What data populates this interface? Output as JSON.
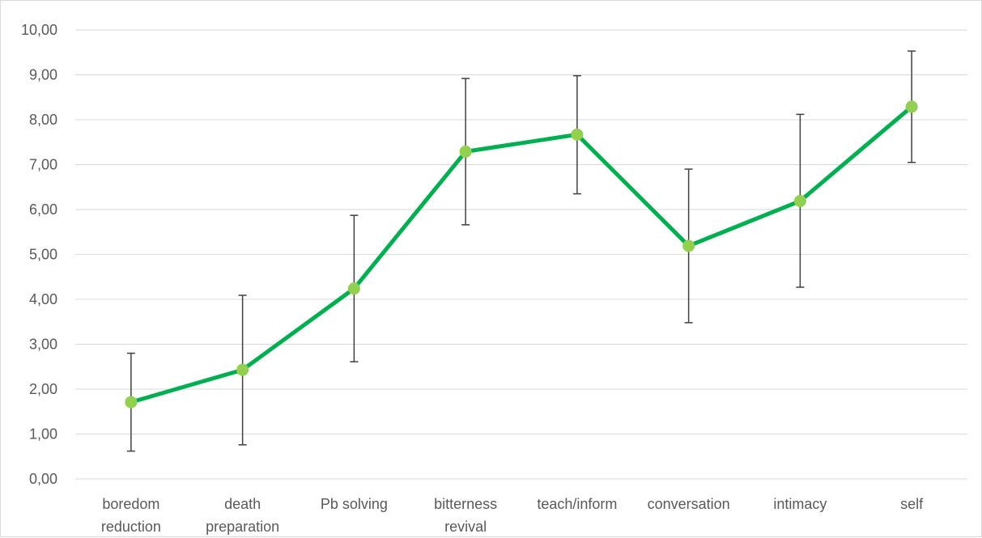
{
  "chart_data": {
    "type": "line",
    "categories": [
      [
        "boredom",
        "reduction"
      ],
      [
        "death",
        "preparation"
      ],
      [
        "Pb solving"
      ],
      [
        "bitterness",
        "revival"
      ],
      [
        "teach/inform"
      ],
      [
        "conversation"
      ],
      [
        "intimacy"
      ],
      [
        "self"
      ]
    ],
    "series": [
      {
        "values": [
          1.71,
          2.43,
          4.24,
          7.29,
          7.67,
          5.19,
          6.19,
          8.29
        ],
        "error_low": [
          0.62,
          0.76,
          2.61,
          5.66,
          6.35,
          3.48,
          4.27,
          7.05
        ],
        "error_high": [
          2.8,
          4.09,
          5.87,
          8.92,
          8.98,
          6.9,
          8.12,
          9.53
        ],
        "line_color": "#00B050",
        "marker_color": "#92D050"
      }
    ],
    "y_ticks": [
      "0,00",
      "1,00",
      "2,00",
      "3,00",
      "4,00",
      "5,00",
      "6,00",
      "7,00",
      "8,00",
      "9,00",
      "10,00"
    ],
    "ylim": [
      0,
      10
    ],
    "grid": true,
    "legend": "none",
    "title": "",
    "xlabel": "",
    "ylabel": "",
    "gridline_color": "#d9d9d9",
    "errorbar_color": "#404040",
    "label_color": "#595959"
  }
}
